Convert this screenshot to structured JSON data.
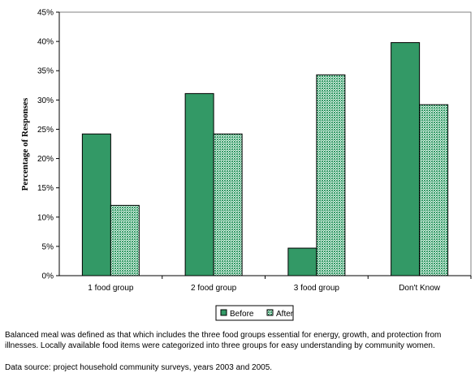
{
  "chart_data": {
    "type": "bar",
    "title": "",
    "xlabel": "",
    "ylabel": "Percentage of Responses",
    "ylim": [
      0,
      45
    ],
    "yticks": [
      0,
      5,
      10,
      15,
      20,
      25,
      30,
      35,
      40,
      45
    ],
    "ytick_suffix": "%",
    "categories": [
      "1 food group",
      "2 food group",
      "3 food group",
      "Don't Know"
    ],
    "series": [
      {
        "name": "Before",
        "values": [
          24.2,
          31.1,
          4.7,
          39.8
        ],
        "color": "#339966",
        "pattern": "solid"
      },
      {
        "name": "After",
        "values": [
          12.0,
          24.2,
          34.3,
          29.2
        ],
        "color": "#339966",
        "pattern": "dotted"
      }
    ],
    "legend": "bottom-center",
    "grid": false
  },
  "captions": {
    "note": "Balanced meal was defined as that which includes the three food groups essential for energy, growth, and protection from illnesses. Locally available food items were categorized into three groups for easy understanding by community women.",
    "source": "Data source: project household community surveys, years 2003 and 2005."
  }
}
